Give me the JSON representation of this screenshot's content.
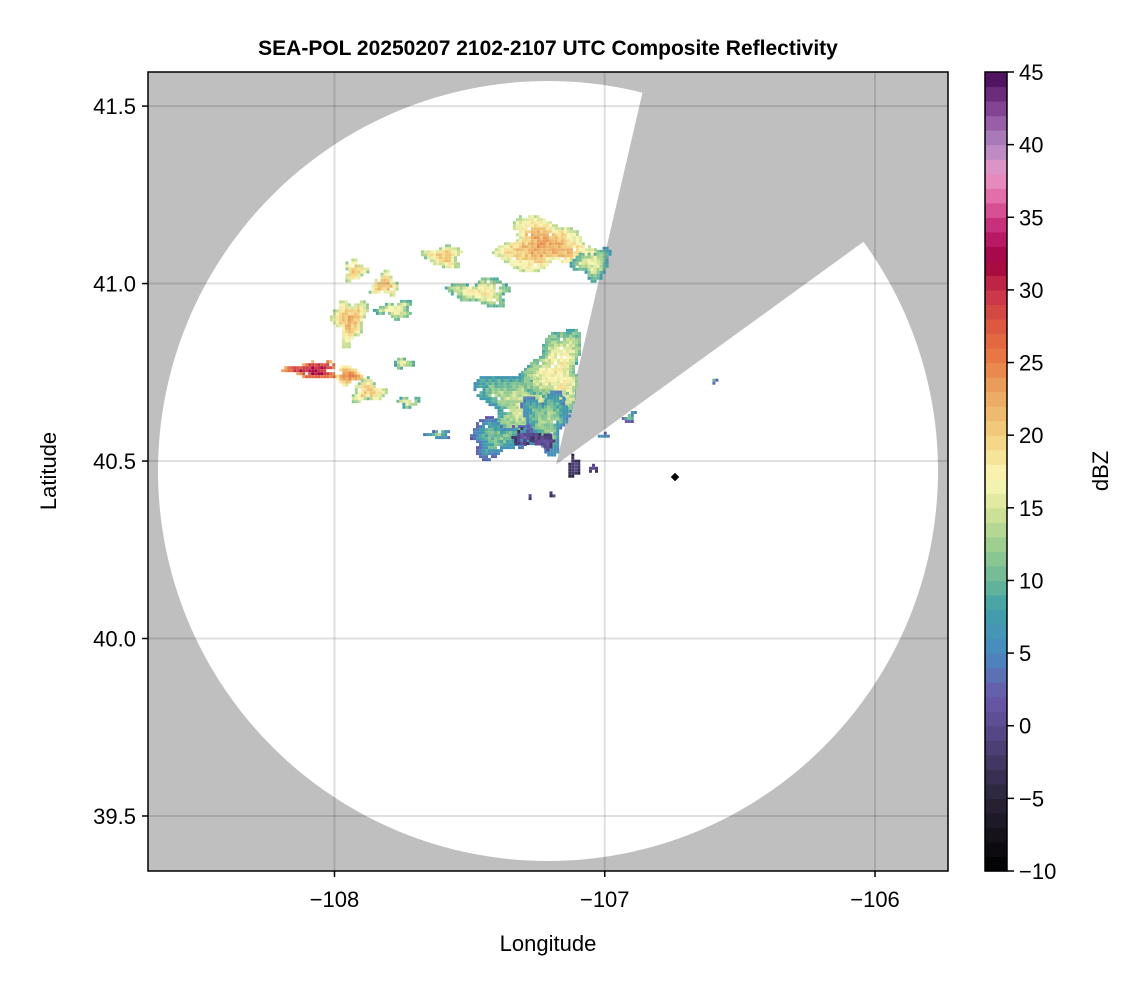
{
  "chart_data": {
    "type": "heatmap",
    "title": "SEA-POL 20250207 2102-2107 UTC Composite Reflectivity",
    "xlabel": "Longitude",
    "ylabel": "Latitude",
    "xlim": [
      -108.69,
      -105.73
    ],
    "ylim": [
      39.345,
      41.596
    ],
    "xticks": [
      -108,
      -107,
      -106
    ],
    "xtick_labels": [
      "−108",
      "−107",
      "−106"
    ],
    "yticks": [
      39.5,
      40.0,
      40.5,
      41.0,
      41.5
    ],
    "ytick_labels": [
      "39.5",
      "40.0",
      "40.5",
      "41.0",
      "41.5"
    ],
    "grid": true,
    "background_color": "#bfbfbf",
    "coverage_color": "#ffffff",
    "colorbar": {
      "label": "dBZ",
      "range": [
        -10,
        45
      ],
      "ticks": [
        -10,
        -5,
        0,
        5,
        10,
        15,
        20,
        25,
        30,
        35,
        40,
        45
      ],
      "tick_labels": [
        "−10",
        "−5",
        "0",
        "5",
        "10",
        "15",
        "20",
        "25",
        "30",
        "35",
        "40",
        "45"
      ],
      "colormap_stops": [
        [
          -10,
          "#000000"
        ],
        [
          -5,
          "#2a2438"
        ],
        [
          0,
          "#5a4a8e"
        ],
        [
          2,
          "#6a58a8"
        ],
        [
          5,
          "#4a8ac0"
        ],
        [
          8,
          "#3fa0a8"
        ],
        [
          10,
          "#6cb898"
        ],
        [
          13,
          "#a8d490"
        ],
        [
          15,
          "#d8e49a"
        ],
        [
          17,
          "#fbf8b8"
        ],
        [
          20,
          "#f2d07e"
        ],
        [
          23,
          "#eaa65e"
        ],
        [
          25,
          "#ea7f48"
        ],
        [
          27,
          "#e06040"
        ],
        [
          30,
          "#c83048"
        ],
        [
          32,
          "#a00040"
        ],
        [
          34,
          "#c02070"
        ],
        [
          36,
          "#e060a0"
        ],
        [
          38,
          "#e898c8"
        ],
        [
          40,
          "#b088c0"
        ],
        [
          42,
          "#9050a0"
        ],
        [
          44,
          "#602070"
        ],
        [
          45,
          "#400850"
        ]
      ]
    },
    "radar_location": {
      "lon": -107.18,
      "lat": 40.49
    },
    "blocked_sector_deg_from_north": [
      14,
      54
    ],
    "marker": {
      "lon": -106.74,
      "lat": 40.455,
      "color": "#000000"
    },
    "echoes": [
      {
        "lon": -107.23,
        "lat": 41.11,
        "rlon": 0.17,
        "rlat": 0.07,
        "dbz": 23
      },
      {
        "lon": -107.05,
        "lat": 41.06,
        "rlon": 0.07,
        "rlat": 0.04,
        "dbz": 16
      },
      {
        "lon": -107.46,
        "lat": 40.98,
        "rlon": 0.11,
        "rlat": 0.035,
        "dbz": 18
      },
      {
        "lon": -107.6,
        "lat": 41.08,
        "rlon": 0.07,
        "rlat": 0.03,
        "dbz": 21
      },
      {
        "lon": -107.82,
        "lat": 41.0,
        "rlon": 0.05,
        "rlat": 0.03,
        "dbz": 22
      },
      {
        "lon": -107.93,
        "lat": 41.04,
        "rlon": 0.04,
        "rlat": 0.03,
        "dbz": 21
      },
      {
        "lon": -107.95,
        "lat": 40.9,
        "rlon": 0.06,
        "rlat": 0.06,
        "dbz": 22
      },
      {
        "lon": -107.78,
        "lat": 40.93,
        "rlon": 0.06,
        "rlat": 0.025,
        "dbz": 18
      },
      {
        "lon": -108.08,
        "lat": 40.76,
        "rlon": 0.09,
        "rlat": 0.025,
        "dbz": 32
      },
      {
        "lon": -107.95,
        "lat": 40.745,
        "rlon": 0.05,
        "rlat": 0.025,
        "dbz": 25
      },
      {
        "lon": -107.88,
        "lat": 40.7,
        "rlon": 0.06,
        "rlat": 0.03,
        "dbz": 21
      },
      {
        "lon": -107.73,
        "lat": 40.67,
        "rlon": 0.04,
        "rlat": 0.015,
        "dbz": 17
      },
      {
        "lon": -107.75,
        "lat": 40.78,
        "rlon": 0.04,
        "rlat": 0.015,
        "dbz": 16
      },
      {
        "lon": -107.62,
        "lat": 40.58,
        "rlon": 0.04,
        "rlat": 0.012,
        "dbz": 12
      },
      {
        "lon": -107.3,
        "lat": 40.66,
        "rlon": 0.16,
        "rlat": 0.1,
        "dbz": 15
      },
      {
        "lon": -107.18,
        "lat": 40.75,
        "rlon": 0.1,
        "rlat": 0.12,
        "dbz": 18
      },
      {
        "lon": -107.22,
        "lat": 40.62,
        "rlon": 0.08,
        "rlat": 0.08,
        "dbz": 13
      },
      {
        "lon": -107.4,
        "lat": 40.57,
        "rlon": 0.11,
        "rlat": 0.05,
        "dbz": 11
      },
      {
        "lon": -107.29,
        "lat": 40.57,
        "rlon": 0.06,
        "rlat": 0.02,
        "dbz": 1
      },
      {
        "lon": -107.23,
        "lat": 40.56,
        "rlon": 0.04,
        "rlat": 0.02,
        "dbz": 1
      },
      {
        "lon": -107.12,
        "lat": 40.49,
        "rlon": 0.02,
        "rlat": 0.03,
        "dbz": -1
      },
      {
        "lon": -107.05,
        "lat": 40.485,
        "rlon": 0.015,
        "rlat": 0.012,
        "dbz": 0
      },
      {
        "lon": -107.28,
        "lat": 40.405,
        "rlon": 0.01,
        "rlat": 0.008,
        "dbz": 0
      },
      {
        "lon": -107.2,
        "lat": 40.41,
        "rlon": 0.012,
        "rlat": 0.01,
        "dbz": 0
      },
      {
        "lon": -107.02,
        "lat": 40.58,
        "rlon": 0.03,
        "rlat": 0.015,
        "dbz": 9
      },
      {
        "lon": -106.92,
        "lat": 40.63,
        "rlon": 0.03,
        "rlat": 0.015,
        "dbz": 11
      },
      {
        "lon": -106.6,
        "lat": 40.73,
        "rlon": 0.01,
        "rlat": 0.008,
        "dbz": 10
      }
    ]
  }
}
